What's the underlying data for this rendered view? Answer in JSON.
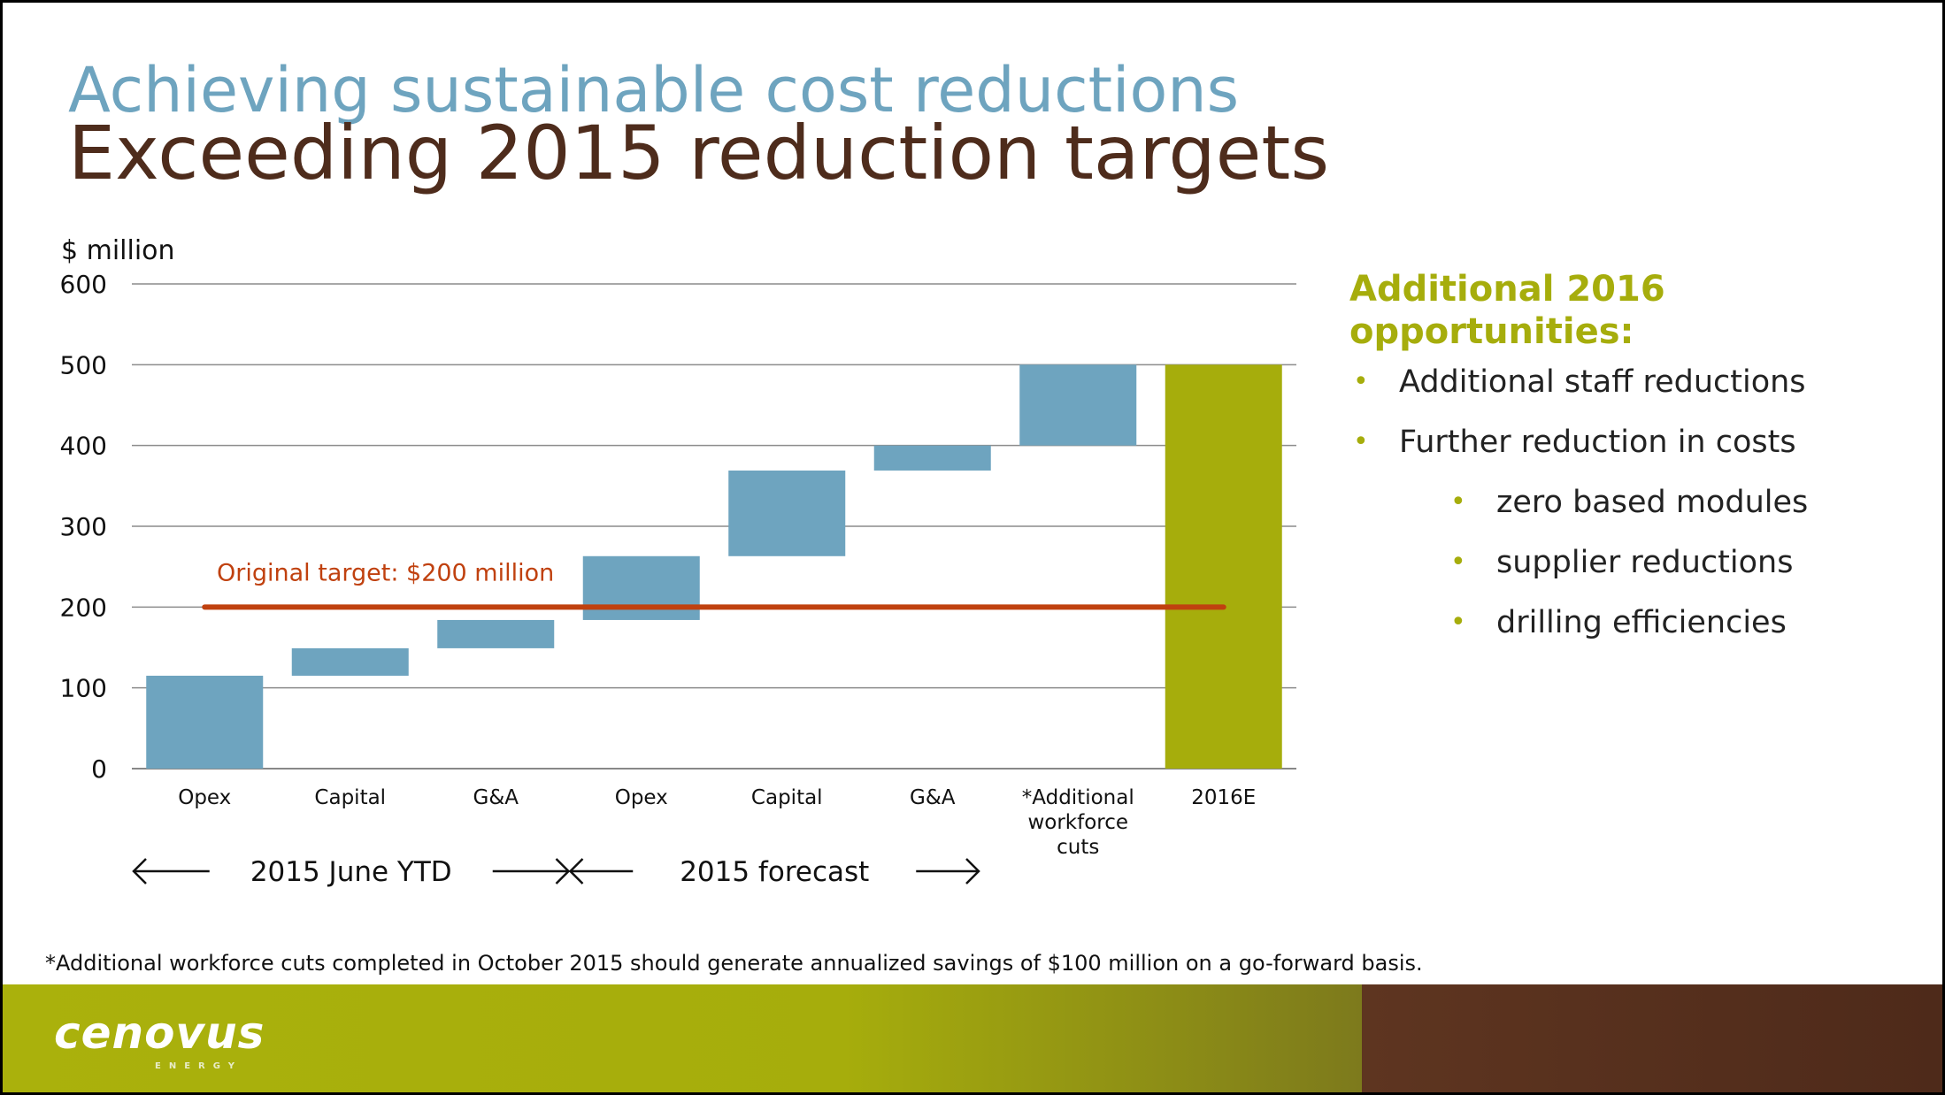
{
  "header": {
    "title": "Achieving sustainable cost reductions",
    "subtitle": "Exceeding 2015 reduction targets"
  },
  "chart_data": {
    "type": "bar",
    "subtype": "waterfall",
    "ylabel": "$ million",
    "ylim": [
      0,
      600
    ],
    "yticks": [
      0,
      100,
      200,
      300,
      400,
      500,
      600
    ],
    "grid": true,
    "categories": [
      "Opex",
      "Capital",
      "G&A",
      "Opex",
      "Capital",
      "G&A",
      "*Additional workforce cuts",
      "2016E"
    ],
    "category_lines": [
      [
        "Opex"
      ],
      [
        "Capital"
      ],
      [
        "G&A"
      ],
      [
        "Opex"
      ],
      [
        "Capital"
      ],
      [
        "G&A"
      ],
      [
        "*Additional",
        "workforce",
        "cuts"
      ],
      [
        "2016E"
      ]
    ],
    "bars": [
      {
        "base": 0,
        "top": 115
      },
      {
        "base": 115,
        "top": 149
      },
      {
        "base": 149,
        "top": 184
      },
      {
        "base": 184,
        "top": 263
      },
      {
        "base": 263,
        "top": 369
      },
      {
        "base": 369,
        "top": 400
      },
      {
        "base": 400,
        "top": 500
      },
      {
        "base": 0,
        "top": 500
      }
    ],
    "bar_colors": [
      "#6ea4bf",
      "#6ea4bf",
      "#6ea4bf",
      "#6ea4bf",
      "#6ea4bf",
      "#6ea4bf",
      "#6ea4bf",
      "#a6ad0c"
    ],
    "target_line": {
      "value": 200,
      "label": "Original target: $200 million",
      "color": "#c0410f",
      "from_category": 0,
      "to_category": 7
    },
    "groups": [
      {
        "label": "2015 June YTD",
        "from_category": 0,
        "to_category": 3
      },
      {
        "label": "2015 forecast",
        "from_category": 3,
        "to_category": 6
      }
    ]
  },
  "sidebar": {
    "heading_lines": [
      "Additional 2016",
      "opportunities:"
    ],
    "items": [
      {
        "text": "Additional staff reductions",
        "level": 1
      },
      {
        "text": "Further reduction in costs",
        "level": 1
      },
      {
        "text": "zero based modules",
        "level": 2
      },
      {
        "text": "supplier reductions",
        "level": 2
      },
      {
        "text": "drilling efficiencies",
        "level": 2
      }
    ],
    "bullet": "•"
  },
  "footnote": "*Additional workforce cuts completed in October 2015 should generate annualized savings of $100 million on a go-forward basis.",
  "brand": {
    "logo_text": "cenovus",
    "logo_subtext": "ENERGY",
    "accent_green": "#a6ad0c",
    "accent_brown": "#4e2a1a"
  }
}
